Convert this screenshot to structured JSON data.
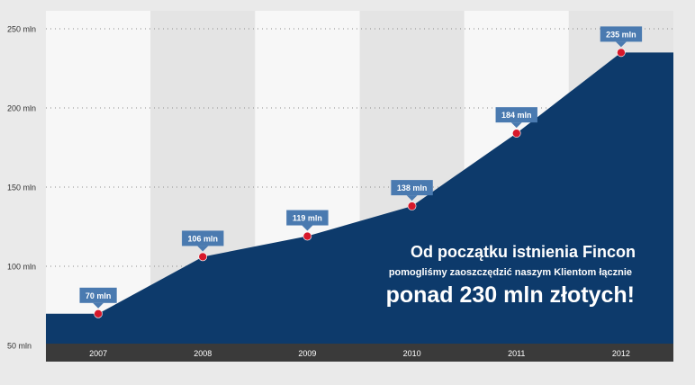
{
  "chart_data": {
    "type": "area",
    "categories": [
      "2007",
      "2008",
      "2009",
      "2010",
      "2011",
      "2012"
    ],
    "values": [
      70,
      106,
      119,
      138,
      184,
      235
    ],
    "data_labels": [
      "70 mln",
      "106 mln",
      "119 mln",
      "138 mln",
      "184 mln",
      "235 mln"
    ],
    "y_ticks": [
      {
        "value": 250,
        "label": "250 mln"
      },
      {
        "value": 200,
        "label": "200 mln"
      },
      {
        "value": 150,
        "label": "150 mln"
      },
      {
        "value": 100,
        "label": "100 mln"
      },
      {
        "value": 50,
        "label": "50 mln"
      }
    ],
    "ylim": [
      50,
      250
    ],
    "grid": true,
    "annotation": {
      "line1": "Od początku istnienia Fincon",
      "line2": "pomogliśmy zaoszczędzić naszym Klientom łącznie",
      "line3": "ponad 230 mln złotych!"
    },
    "colors": {
      "area": "#0d3a6b",
      "point": "#d7182a",
      "label_bg": "#4a7ab0",
      "axis_bar": "#3a3a3a",
      "band_light": "#f7f7f7",
      "band_dark": "#e4e4e4",
      "background": "#eaeaea"
    }
  }
}
